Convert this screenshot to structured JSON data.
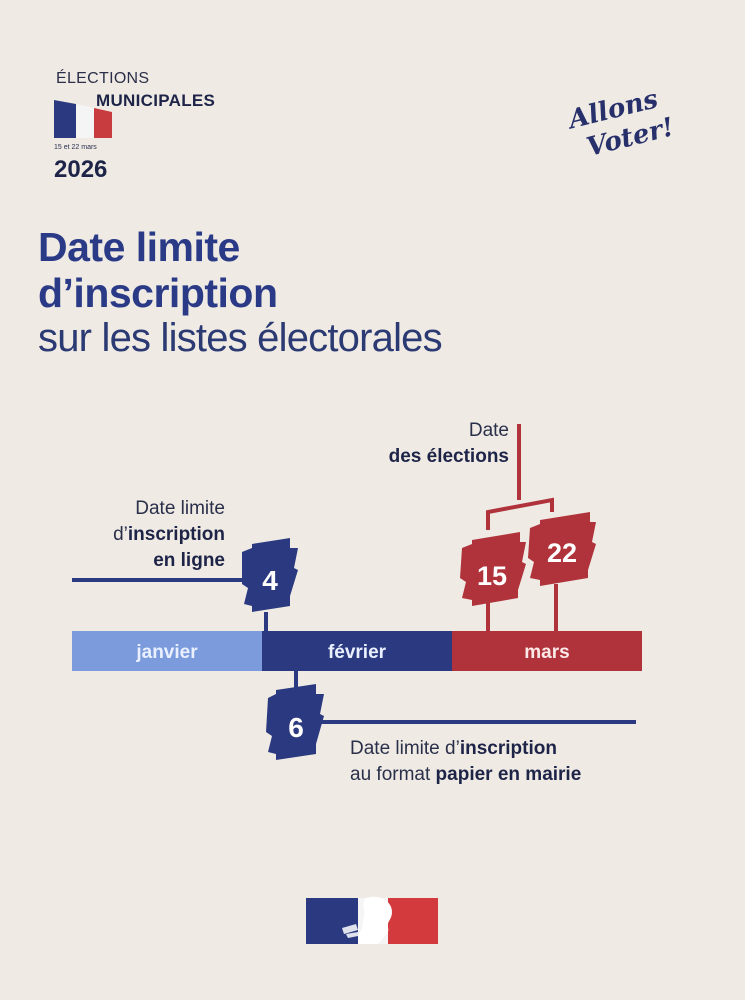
{
  "header": {
    "elections": "ÉLECTIONS",
    "municipales": "MUNICIPALES",
    "dates_small": "15 et 22 mars",
    "year": "2026",
    "slogan": "Allons Voter!"
  },
  "title": {
    "line1": "Date limite",
    "line2": "d’inscription",
    "line3": "sur les listes électorales"
  },
  "timeline": {
    "months": [
      "janvier",
      "février",
      "mars"
    ],
    "election_note": {
      "line1": "Date",
      "line2": "des élections"
    },
    "online_note": {
      "line1": "Date limite",
      "line2_prefix": "d’",
      "line2_bold": "inscription",
      "line3": "en ligne"
    },
    "paper_note": {
      "line1_prefix": "Date limite d’",
      "line1_bold": "inscription",
      "line2_prefix": "au format ",
      "line2_bold": "papier en mairie"
    },
    "online_deadline_day": "4",
    "paper_deadline_day": "6",
    "election_days": [
      "15",
      "22"
    ]
  },
  "colors": {
    "background": "#efebe4",
    "blue_dark": "#2b3a80",
    "blue_light": "#7b9bdc",
    "red": "#b0333b",
    "title_blue": "#2a3a86"
  }
}
